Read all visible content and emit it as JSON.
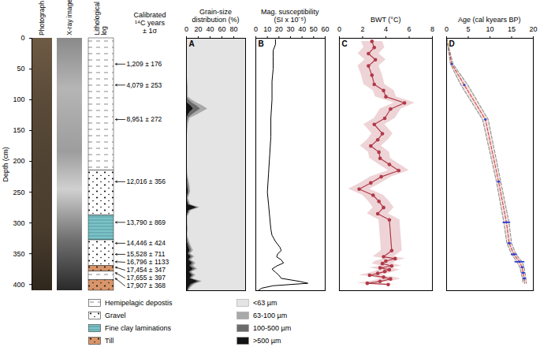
{
  "chart_data": [
    {
      "type": "core_log",
      "ylabel": "Depth (cm)",
      "ylim": [
        0,
        410
      ],
      "yticks": [
        0,
        50,
        100,
        150,
        200,
        250,
        300,
        350,
        400
      ],
      "tick_labels": "y",
      "columns": [
        [
          "Photograph"
        ],
        [
          "X-ray image"
        ],
        [
          "Lithological",
          "log"
        ]
      ],
      "lithology": [
        {
          "name": "Hemipelagic depostis",
          "color": "#ffffff",
          "marker": "dash"
        },
        {
          "name": "Gravel",
          "color": "#ffffff",
          "marker": "dots"
        },
        {
          "name": "Fine clay laminations",
          "color": "#7cc3c8",
          "marker": "lines"
        },
        {
          "name": "Till",
          "color": "#d9956a",
          "marker": "dots"
        }
      ],
      "intervals": [
        {
          "unit": "Hemipelagic depostis",
          "top": 0,
          "bottom": 215
        },
        {
          "unit": "Gravel",
          "top": 215,
          "bottom": 288
        },
        {
          "unit": "Fine clay laminations",
          "top": 288,
          "bottom": 328
        },
        {
          "unit": "Gravel",
          "top": 328,
          "bottom": 370
        },
        {
          "unit": "Till",
          "top": 370,
          "bottom": 379
        },
        {
          "unit": "Hemipelagic depostis",
          "top": 379,
          "bottom": 393
        },
        {
          "unit": "Till",
          "top": 393,
          "bottom": 410
        }
      ],
      "dates_title": [
        "Calibrated",
        "¹⁴C years",
        "± 1σ"
      ],
      "dates": [
        {
          "depth": 42,
          "label": "1,209 ± 176",
          "age": 1.209,
          "error": 0.176
        },
        {
          "depth": 76,
          "label": "4,079 ± 253",
          "age": 4.079,
          "error": 0.253
        },
        {
          "depth": 132,
          "label": "8,951 ± 272",
          "age": 8.951,
          "error": 0.272
        },
        {
          "depth": 233,
          "label": "12,016 ± 356",
          "age": 12.016,
          "error": 0.356
        },
        {
          "depth": 299,
          "label": "13,790 ± 869",
          "age": 13.79,
          "error": 0.869
        },
        {
          "depth": 333,
          "label": "14,446 ± 424",
          "age": 14.446,
          "error": 0.424
        },
        {
          "depth": 351,
          "label": "15,528 ± 711",
          "age": 15.528,
          "error": 0.711
        },
        {
          "depth": 363,
          "label": "16,796 ± 1133",
          "age": 16.796,
          "error": 1.133
        },
        {
          "depth": 372,
          "label": "17,454 ± 347",
          "age": 17.454,
          "error": 0.347
        },
        {
          "depth": 381,
          "label": "17,655 ± 397",
          "age": 17.655,
          "error": 0.397
        },
        {
          "depth": 390,
          "label": "17,907 ± 368",
          "age": 17.907,
          "error": 0.368
        }
      ]
    },
    {
      "type": "area",
      "panel": "A",
      "title": [
        "Grain-size",
        "distribution (%)"
      ],
      "stacked": true,
      "tick_labels": "x",
      "xlim": [
        0,
        100
      ],
      "xticks": [
        0,
        20,
        40,
        60,
        80
      ],
      "ylim": [
        0,
        410
      ],
      "y": [
        0,
        20,
        40,
        60,
        80,
        95,
        100,
        105,
        110,
        115,
        120,
        125,
        130,
        140,
        160,
        180,
        200,
        220,
        240,
        250,
        260,
        270,
        275,
        280,
        290,
        300,
        310,
        320,
        330,
        335,
        340,
        345,
        350,
        355,
        360,
        365,
        370,
        375,
        380,
        385,
        390,
        395,
        400,
        405,
        410
      ],
      "series": [
        {
          "name": "<63 µm",
          "color": "#e4e4e4",
          "values": [
            99,
            99,
            99,
            99,
            97,
            97,
            91,
            82,
            72,
            64,
            74,
            83,
            94,
            97,
            99,
            99,
            99,
            98,
            94,
            93,
            97,
            93,
            77,
            92,
            98,
            98,
            97,
            98,
            95,
            93,
            91,
            88,
            93,
            86,
            92,
            84,
            88,
            81,
            91,
            84,
            90,
            73,
            86,
            92,
            96
          ]
        },
        {
          "name": "63-100 µm",
          "color": "#a9a9a9",
          "values": [
            1,
            1,
            1,
            1,
            2,
            2,
            5,
            8,
            10,
            12,
            10,
            8,
            3,
            2,
            1,
            1,
            1,
            1,
            2,
            2,
            1,
            2,
            2,
            2,
            1,
            1,
            1,
            1,
            2,
            2,
            2,
            3,
            2,
            3,
            2,
            3,
            3,
            3,
            2,
            3,
            2,
            3,
            3,
            2,
            1
          ]
        },
        {
          "name": "100-500 µm",
          "color": "#6b6b6b",
          "values": [
            0,
            0,
            0,
            0,
            1,
            1,
            3,
            8,
            10,
            12,
            10,
            6,
            2,
            1,
            0,
            0,
            0,
            1,
            2,
            2,
            1,
            2,
            3,
            2,
            1,
            1,
            1,
            1,
            2,
            2,
            3,
            3,
            2,
            3,
            2,
            3,
            3,
            4,
            2,
            3,
            2,
            4,
            3,
            2,
            1
          ]
        },
        {
          "name": ">500 µm",
          "color": "#141414",
          "values": [
            0,
            0,
            0,
            0,
            0,
            0,
            1,
            2,
            8,
            12,
            6,
            3,
            1,
            0,
            0,
            0,
            0,
            0,
            2,
            3,
            1,
            3,
            18,
            4,
            0,
            0,
            1,
            0,
            1,
            3,
            4,
            6,
            3,
            8,
            4,
            10,
            6,
            12,
            5,
            10,
            6,
            20,
            8,
            4,
            2
          ]
        }
      ]
    },
    {
      "type": "line",
      "panel": "B",
      "title": [
        "Mag. susceptibility",
        "(SI x 10⁻⁵)"
      ],
      "tick_labels": "x",
      "xlim": [
        0,
        60
      ],
      "xticks": [
        0,
        10,
        20,
        30,
        40,
        50,
        60
      ],
      "ylim": [
        0,
        410
      ],
      "color": "#000000",
      "y": [
        2,
        10,
        20,
        30,
        50,
        70,
        100,
        130,
        160,
        190,
        220,
        250,
        270,
        290,
        310,
        320,
        330,
        340,
        345,
        350,
        355,
        360,
        365,
        370,
        375,
        380,
        385,
        390,
        395,
        398,
        402,
        406,
        410
      ],
      "values": [
        17,
        17,
        15,
        15,
        15,
        14,
        14,
        13,
        13,
        12,
        11,
        10,
        11,
        12,
        13,
        14,
        17,
        21,
        22,
        19,
        18,
        22,
        24,
        18,
        14,
        17,
        20,
        22,
        38,
        45,
        15,
        5,
        2
      ]
    },
    {
      "type": "line",
      "panel": "C",
      "title": [
        "BWT (°C)"
      ],
      "tick_labels": "x",
      "xlim": [
        0,
        8
      ],
      "xticks": [
        0,
        2,
        4,
        6,
        8
      ],
      "ylim": [
        0,
        410
      ],
      "y": [
        5,
        15,
        25,
        35,
        45,
        60,
        75,
        85,
        95,
        105,
        115,
        130,
        140,
        155,
        165,
        175,
        185,
        195,
        205,
        215,
        225,
        235,
        245,
        255,
        265,
        275,
        285,
        295,
        345,
        355,
        358,
        362,
        366,
        370,
        373,
        376,
        379,
        382,
        385,
        388,
        391,
        395,
        398,
        400
      ],
      "series": [
        {
          "color": "#b03a48",
          "marker": "circle",
          "error": 0.9,
          "values": [
            2.8,
            3.0,
            2.5,
            3.1,
            2.5,
            2.8,
            3.0,
            3.8,
            4.0,
            5.6,
            4.4,
            3.9,
            3.0,
            3.7,
            3.3,
            2.7,
            3.4,
            3.5,
            4.3,
            5.1,
            3.6,
            2.7,
            1.7,
            2.9,
            3.4,
            3.8,
            3.3,
            4.3,
            4.5,
            3.8,
            4.8,
            4.0,
            3.7,
            4.5,
            3.5,
            4.3,
            3.9,
            3.3,
            2.6,
            3.8,
            4.4,
            3.5,
            2.4,
            4.2
          ]
        }
      ]
    },
    {
      "type": "line",
      "panel": "D",
      "title": [
        "Age (cal kyears BP)"
      ],
      "tick_labels": "x",
      "xlim": [
        0,
        20
      ],
      "xticks": [
        0,
        5,
        10,
        15,
        20
      ],
      "ylim": [
        0,
        410
      ],
      "y": [
        0,
        42,
        76,
        132,
        233,
        299,
        333,
        351,
        363,
        372,
        381,
        390,
        398
      ],
      "series": [
        {
          "color": "#d0443e",
          "line_style": "dashed",
          "values": [
            0,
            1.2,
            4.1,
            8.95,
            12.0,
            13.8,
            14.45,
            15.5,
            16.8,
            17.4,
            17.65,
            17.9,
            18.0
          ]
        },
        {
          "color": "#8f8f8f",
          "line_style": "dashed",
          "values": [
            0,
            0.9,
            3.3,
            8.3,
            11.5,
            13.2,
            13.9,
            15.0,
            16.2,
            16.9,
            17.2,
            17.5,
            17.6
          ]
        },
        {
          "color": "#8f8f8f",
          "line_style": "dashed",
          "values": [
            0,
            1.5,
            4.9,
            9.6,
            12.5,
            14.4,
            15.0,
            16.0,
            17.4,
            17.9,
            18.1,
            18.3,
            18.4
          ]
        }
      ]
    }
  ]
}
